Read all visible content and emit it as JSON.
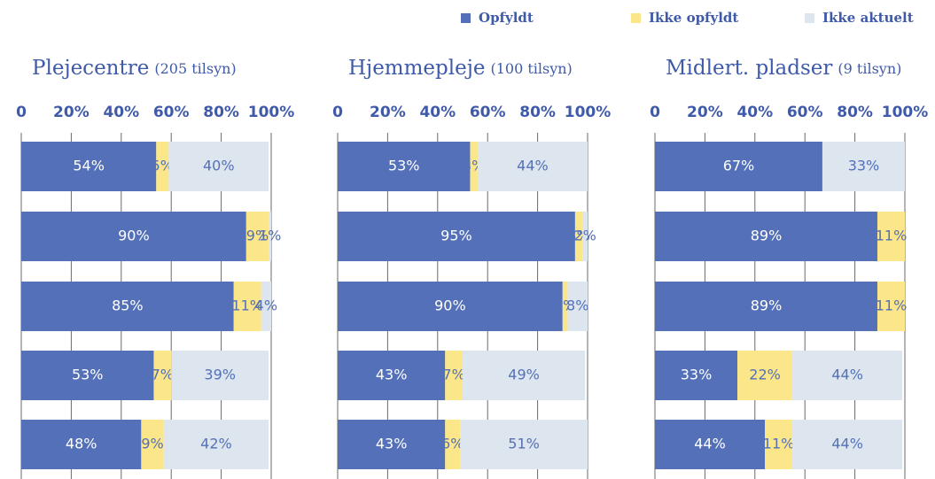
{
  "legend": [
    {
      "name": "Opfyldt",
      "color": "#5470b8"
    },
    {
      "name": "Ikke opfyldt",
      "color": "#fbe68a"
    },
    {
      "name": "Ikke aktuelt",
      "color": "#dde6ee"
    }
  ],
  "chart_data": [
    {
      "type": "stacked-bar",
      "orientation": "horizontal",
      "title": "Plejecentre",
      "subtitle": "(205 tilsyn)",
      "xlim": [
        0,
        100
      ],
      "xticks": [
        0,
        {
          "value": 20,
          "label": "20%"
        },
        {
          "value": 40,
          "label": "40%"
        },
        {
          "value": 60,
          "label": "60%"
        },
        {
          "value": 80,
          "label": "80%"
        },
        {
          "value": 100,
          "label": "100%"
        }
      ],
      "grid": true,
      "series": [
        {
          "values": [
            54,
            90,
            85,
            53,
            48
          ],
          "value_labels": [
            "54%",
            "90%",
            "85%",
            "53%",
            "48%"
          ]
        },
        {
          "values": [
            5,
            9,
            11,
            7,
            9
          ],
          "value_labels": [
            "5%",
            "9%",
            "11%",
            "7%",
            "9%"
          ]
        },
        {
          "values": [
            40,
            1,
            4,
            39,
            42
          ],
          "value_labels": [
            "40%",
            "1%",
            "4%",
            "39%",
            "42%"
          ]
        }
      ]
    },
    {
      "type": "stacked-bar",
      "orientation": "horizontal",
      "title": "Hjemmepleje",
      "subtitle": "(100 tilsyn)",
      "xlim": [
        0,
        100
      ],
      "xticks": [
        0,
        {
          "value": 20,
          "label": "20%"
        },
        {
          "value": 40,
          "label": "40%"
        },
        {
          "value": 60,
          "label": "60%"
        },
        {
          "value": 80,
          "label": "80%"
        },
        {
          "value": 100,
          "label": "100%"
        }
      ],
      "grid": true,
      "series": [
        {
          "values": [
            53,
            95,
            90,
            43,
            43
          ],
          "value_labels": [
            "53%",
            "95%",
            "90%",
            "43%",
            "43%"
          ]
        },
        {
          "values": [
            3,
            3,
            2,
            7,
            6
          ],
          "value_labels": [
            "3%",
            "3%",
            "2%",
            "7%",
            "6%"
          ]
        },
        {
          "values": [
            44,
            2,
            8,
            49,
            51
          ],
          "value_labels": [
            "44%",
            "2%",
            "8%",
            "49%",
            "51%"
          ]
        }
      ]
    },
    {
      "type": "stacked-bar",
      "orientation": "horizontal",
      "title": "Midlert. pladser",
      "subtitle": "(9 tilsyn)",
      "xlim": [
        0,
        100
      ],
      "xticks": [
        0,
        {
          "value": 20,
          "label": "20%"
        },
        {
          "value": 40,
          "label": "40%"
        },
        {
          "value": 60,
          "label": "60%"
        },
        {
          "value": 80,
          "label": "80%"
        },
        {
          "value": 100,
          "label": "100%"
        }
      ],
      "grid": true,
      "series": [
        {
          "values": [
            67,
            89,
            89,
            33,
            44
          ],
          "value_labels": [
            "67%",
            "89%",
            "89%",
            "33%",
            "44%"
          ]
        },
        {
          "values": [
            0,
            11,
            11,
            22,
            11
          ],
          "value_labels": [
            null,
            "11%",
            "11%",
            "22%",
            "11%"
          ]
        },
        {
          "values": [
            33,
            0,
            0,
            44,
            44
          ],
          "value_labels": [
            "33%",
            null,
            null,
            "44%",
            "44%"
          ]
        }
      ]
    }
  ]
}
